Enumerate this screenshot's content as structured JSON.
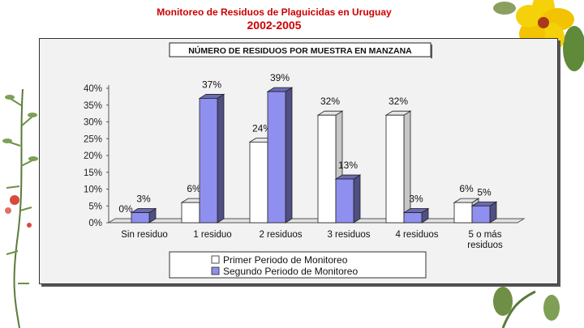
{
  "slide": {
    "title": "Monitoreo de Residuos de Plaguicidas en Uruguay",
    "subtitle": "2002-2005"
  },
  "colors": {
    "title_red": "#cc0000",
    "series_1": "#ffffff",
    "series_2": "#8f8fef",
    "frame_bg": "#f2f2f2"
  },
  "chart_data": {
    "type": "bar",
    "title": "NÚMERO DE RESIDUOS POR MUESTRA EN MANZANA",
    "xlabel": "",
    "ylabel": "",
    "ylim": [
      0,
      40
    ],
    "yticks": [
      "0%",
      "5%",
      "10%",
      "15%",
      "20%",
      "25%",
      "30%",
      "35%",
      "40%"
    ],
    "categories": [
      "Sin residuo",
      "1 residuo",
      "2 residuos",
      "3 residuos",
      "4 residuos",
      "5 o más residuos"
    ],
    "series": [
      {
        "name": "Primer Periodo de Monitoreo",
        "values": [
          0,
          6,
          24,
          32,
          32,
          6
        ],
        "labels": [
          "0%",
          "6%",
          "24%",
          "32%",
          "32%",
          "6%"
        ]
      },
      {
        "name": "Segundo Periodo de Monitoreo",
        "values": [
          3,
          37,
          39,
          13,
          3,
          5
        ],
        "labels": [
          "3%",
          "37%",
          "39%",
          "13%",
          "3%",
          "5%"
        ]
      }
    ],
    "legend_position": "bottom",
    "grid": false
  }
}
